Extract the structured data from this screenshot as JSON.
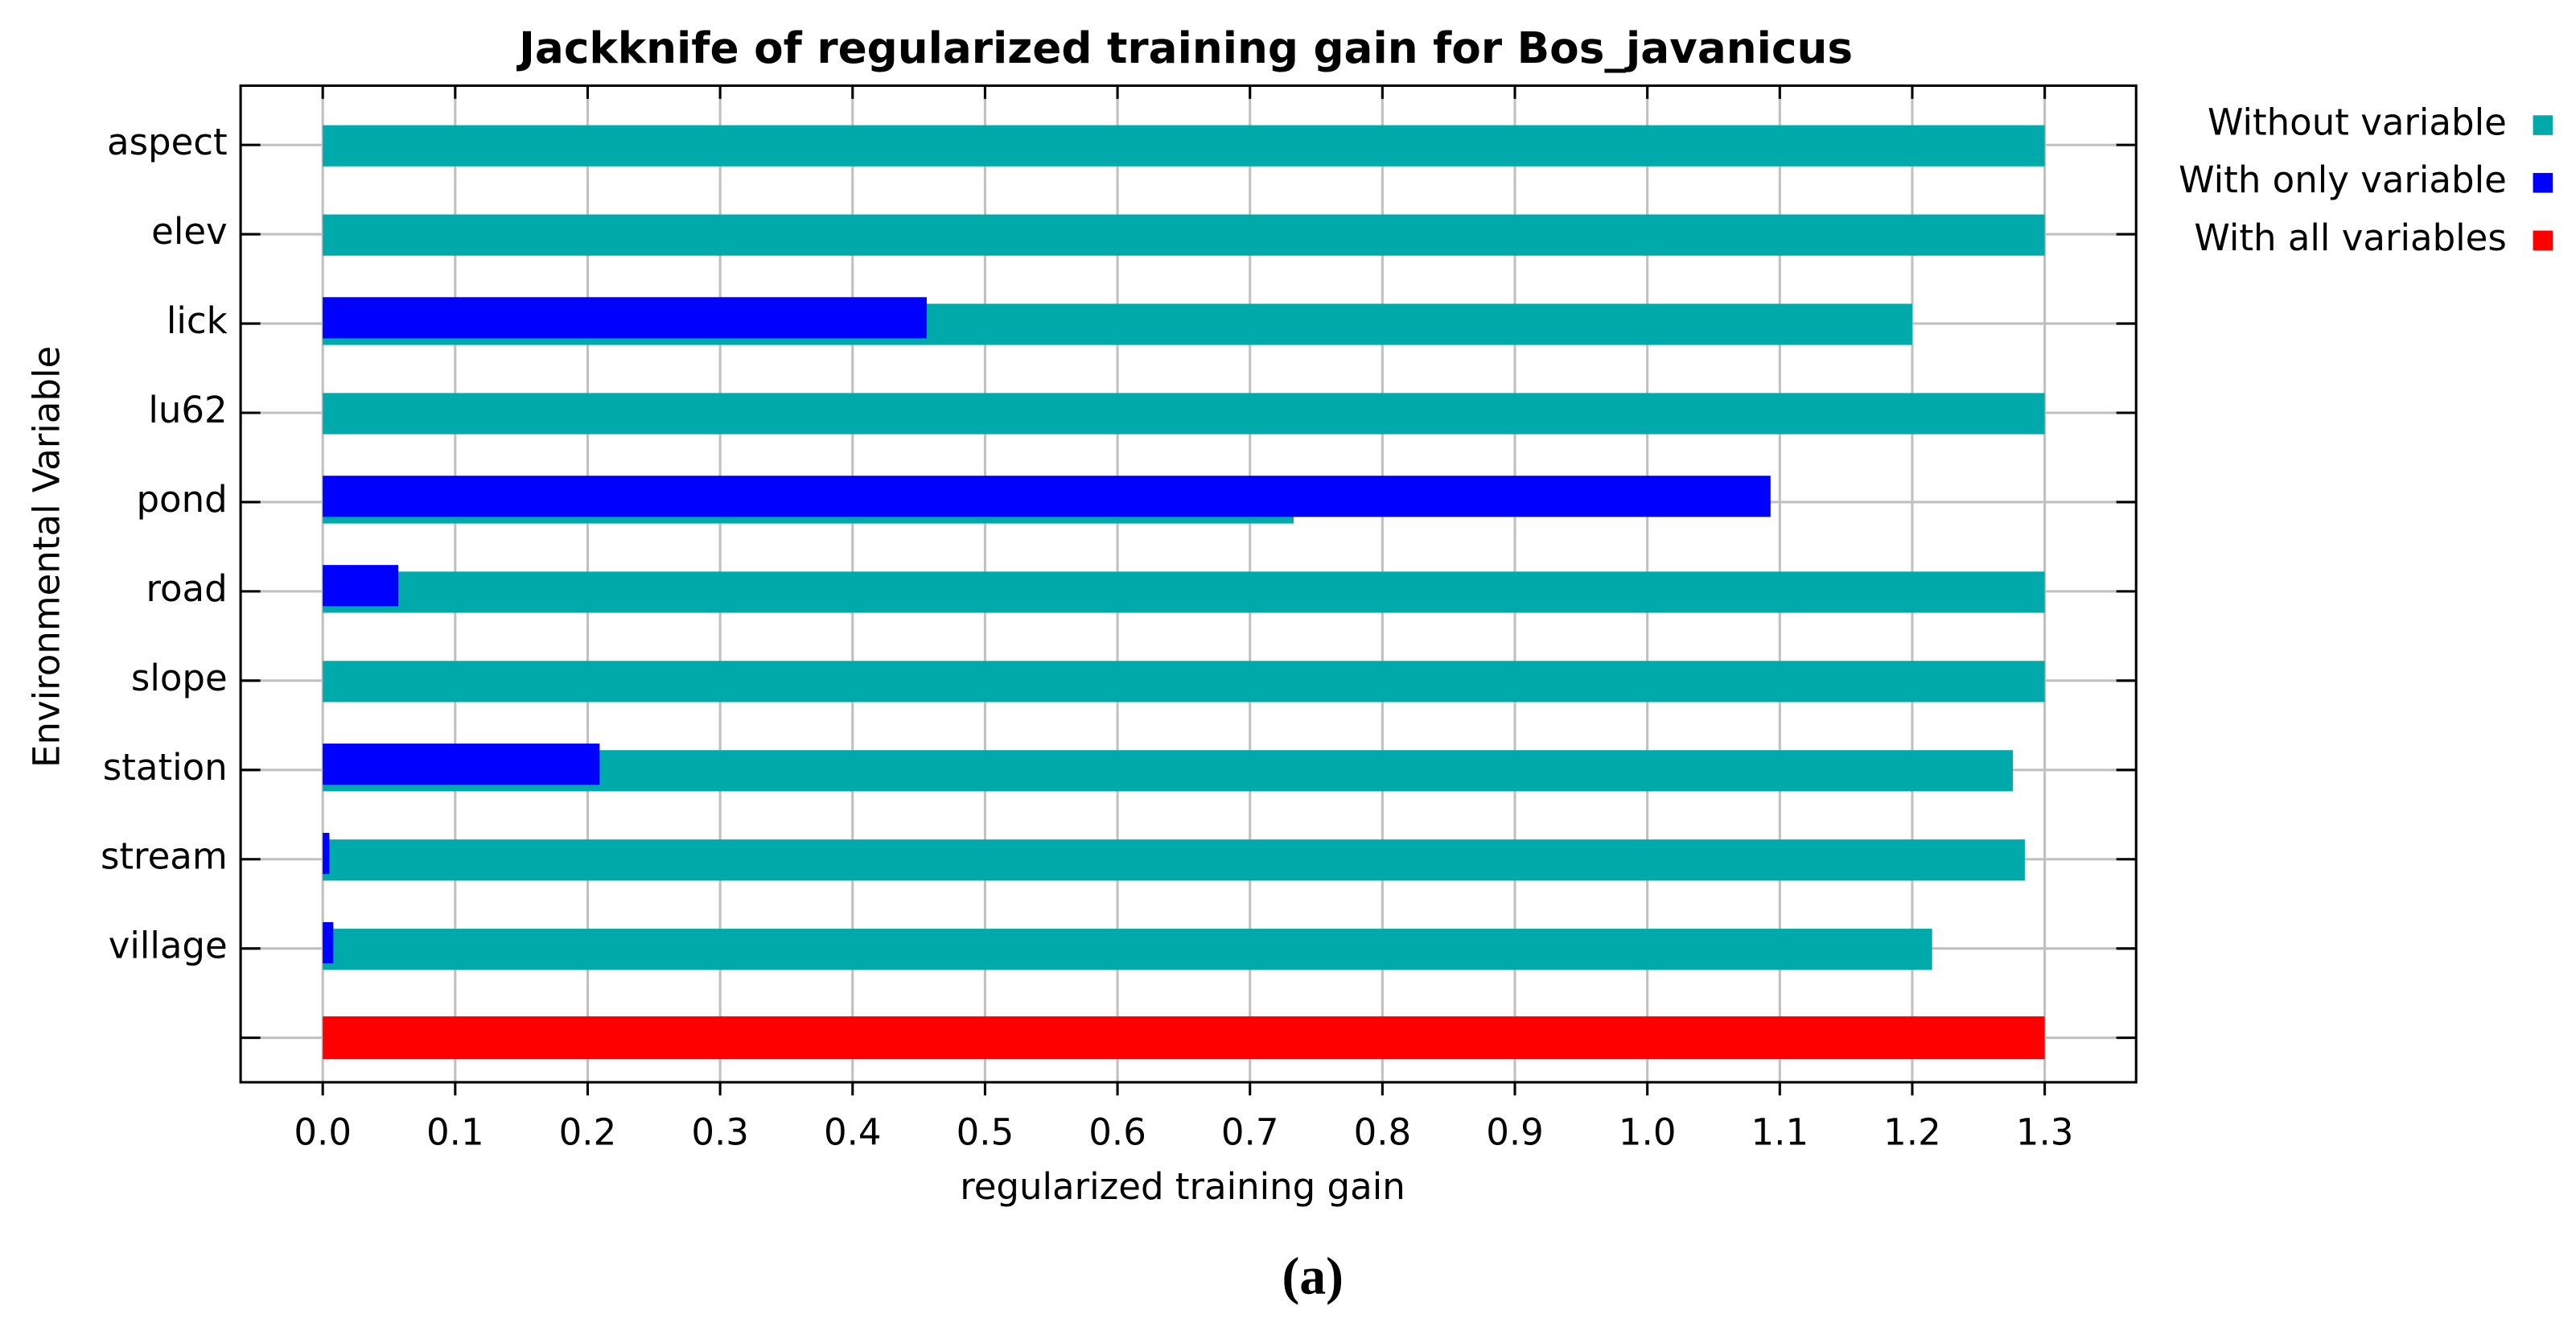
{
  "chart_data": {
    "type": "bar",
    "orientation": "horizontal",
    "title": "Jackknife of regularized training gain for Bos_javanicus",
    "xlabel": "regularized training gain",
    "ylabel": "Environmental Variable",
    "caption": "(a)",
    "categories": [
      "aspect",
      "elev",
      "lick",
      "lu62",
      "pond",
      "road",
      "slope",
      "station",
      "stream",
      "village",
      null
    ],
    "series": [
      {
        "name": "Without variable",
        "color": "#00aaaa",
        "values": [
          1.3,
          1.3,
          1.2,
          1.3,
          0.733,
          1.3,
          1.3,
          1.276,
          1.285,
          1.215,
          null
        ]
      },
      {
        "name": "With only variable",
        "color": "#0000ff",
        "values": [
          null,
          null,
          0.456,
          null,
          1.093,
          0.057,
          null,
          0.209,
          0.005,
          0.008,
          null
        ]
      },
      {
        "name": "With all variables",
        "color": "#ff0000",
        "values": [
          null,
          null,
          null,
          null,
          null,
          null,
          null,
          null,
          null,
          null,
          1.3
        ]
      }
    ],
    "xlim": [
      -0.062,
      1.369
    ],
    "xticks": [
      {
        "value": 0,
        "label": "0.0"
      },
      0.1,
      0.2,
      0.3,
      0.4,
      0.5,
      0.6,
      0.7,
      0.8,
      0.9,
      {
        "value": 1,
        "label": "1.0"
      },
      1.1,
      1.2,
      1.3
    ],
    "grid": true,
    "legend": "outside-top-right"
  }
}
